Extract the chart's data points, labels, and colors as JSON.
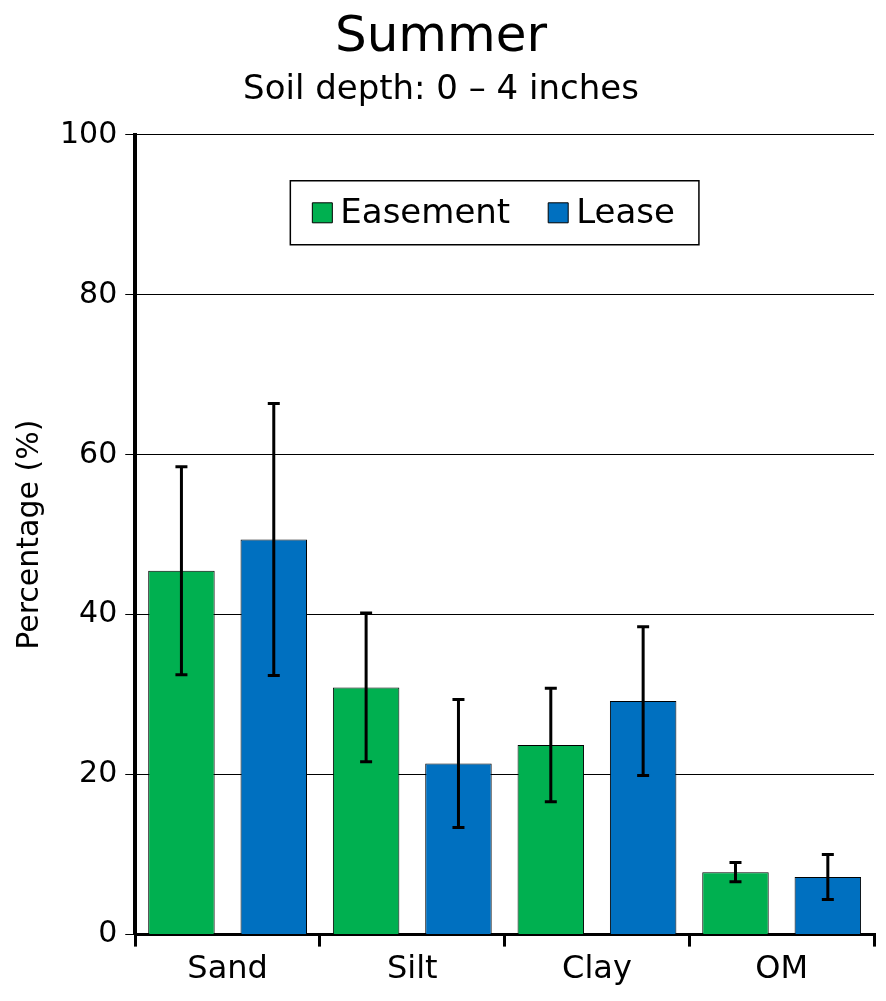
{
  "chart_data": {
    "type": "bar",
    "title": "Summer",
    "subtitle": "Soil depth: 0 – 4 inches",
    "ylabel": "Percentage (%)",
    "categories": [
      "Sand",
      "Silt",
      "Clay",
      "OM"
    ],
    "series": [
      {
        "name": "Easement",
        "color": "#00b050",
        "values": [
          45.5,
          30.9,
          23.7,
          7.8
        ],
        "errors": [
          13,
          9.3,
          7.1,
          1.2
        ]
      },
      {
        "name": "Lease",
        "color": "#0070c0",
        "values": [
          49.4,
          21.4,
          29.2,
          7.2
        ],
        "errors": [
          17,
          8,
          9.3,
          2.8
        ]
      }
    ],
    "ylim": [
      0,
      100
    ],
    "yticks": [
      0,
      20,
      40,
      60,
      80,
      100
    ],
    "grid": "y",
    "legend": "top"
  }
}
